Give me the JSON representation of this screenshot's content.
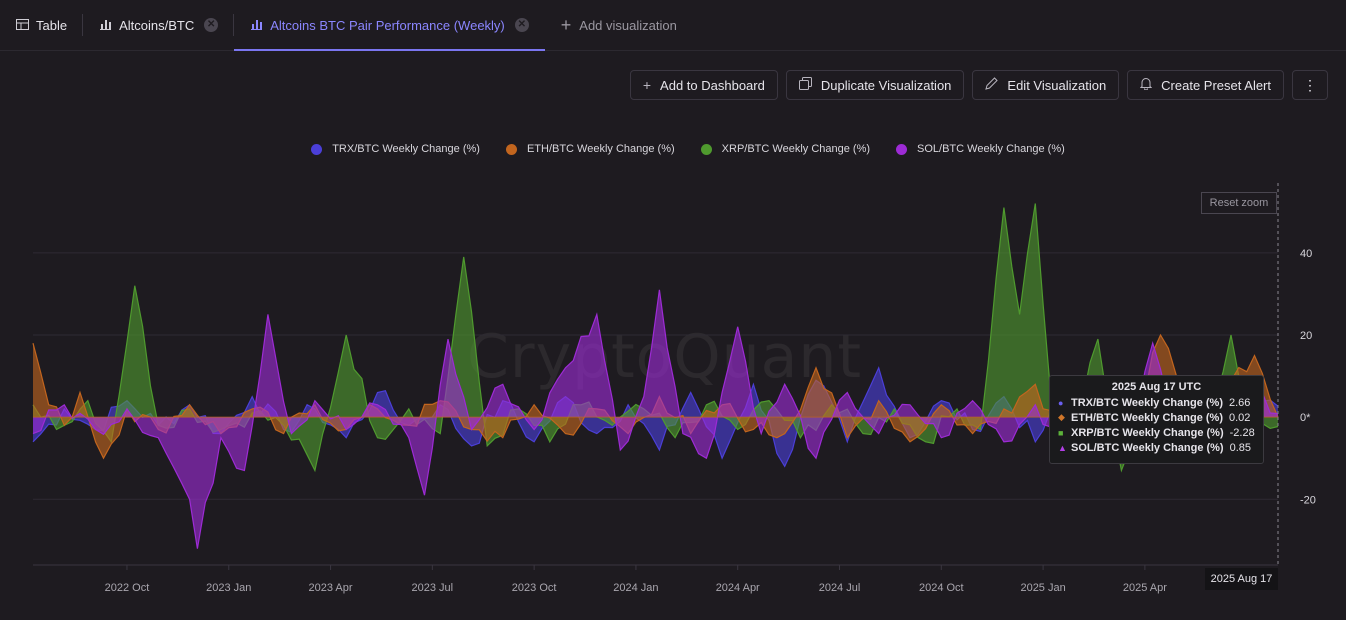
{
  "tabs": [
    {
      "label": "Table",
      "icon": "table-icon",
      "closable": false
    },
    {
      "label": "Altcoins/BTC",
      "icon": "bar-chart-icon",
      "closable": true
    },
    {
      "label": "Altcoins BTC Pair Performance (Weekly)",
      "icon": "bar-chart-icon",
      "closable": true,
      "active": true
    }
  ],
  "add_tab_label": "Add visualization",
  "toolbar": {
    "add_dashboard": "Add to Dashboard",
    "duplicate": "Duplicate Visualization",
    "edit": "Edit Visualization",
    "preset_alert": "Create Preset Alert",
    "more": "⋮"
  },
  "reset_zoom": "Reset zoom",
  "watermark": "CryptoQuant",
  "tooltip": {
    "title": "2025 Aug 17 UTC",
    "rows": [
      {
        "label": "TRX/BTC Weekly Change (%)",
        "value": "2.66",
        "marker": "●"
      },
      {
        "label": "ETH/BTC Weekly Change (%)",
        "value": "0.02",
        "marker": "◆"
      },
      {
        "label": "XRP/BTC Weekly Change (%)",
        "value": "-2.28",
        "marker": "■"
      },
      {
        "label": "SOL/BTC Weekly Change (%)",
        "value": "0.85",
        "marker": "▲"
      }
    ]
  },
  "x_flag": "2025 Aug 17",
  "chart_data": {
    "type": "area",
    "ylim": [
      -36,
      57
    ],
    "y_ticks": [
      {
        "value": 40,
        "label": "40"
      },
      {
        "value": 20,
        "label": "20"
      },
      {
        "value": 0,
        "label": "0*"
      },
      {
        "value": -20,
        "label": "-20"
      }
    ],
    "x_ticks": [
      {
        "label": "2022 Oct",
        "index": 12
      },
      {
        "label": "2023 Jan",
        "index": 25
      },
      {
        "label": "2023 Apr",
        "index": 38
      },
      {
        "label": "2023 Jul",
        "index": 51
      },
      {
        "label": "2023 Oct",
        "index": 64
      },
      {
        "label": "2024 Jan",
        "index": 77
      },
      {
        "label": "2024 Apr",
        "index": 90
      },
      {
        "label": "2024 Jul",
        "index": 103
      },
      {
        "label": "2024 Oct",
        "index": 116
      },
      {
        "label": "2025 Jan",
        "index": 129
      },
      {
        "label": "2025 Apr",
        "index": 142
      }
    ],
    "x_start": "2022 Jul",
    "x_end": "2025 Aug 17",
    "n_points": 160,
    "grid": true,
    "legend_position": "top-center",
    "series": [
      {
        "name": "TRX/BTC Weekly Change (%)",
        "color": "#4b3fd8",
        "keypoints": [
          [
            0,
            -6
          ],
          [
            4,
            2
          ],
          [
            8,
            -3
          ],
          [
            12,
            4
          ],
          [
            16,
            -2
          ],
          [
            20,
            3
          ],
          [
            24,
            -4
          ],
          [
            28,
            5
          ],
          [
            32,
            -3
          ],
          [
            36,
            2
          ],
          [
            40,
            -5
          ],
          [
            44,
            6
          ],
          [
            48,
            -2
          ],
          [
            52,
            3
          ],
          [
            56,
            -7
          ],
          [
            60,
            4
          ],
          [
            64,
            -6
          ],
          [
            68,
            5
          ],
          [
            72,
            -4
          ],
          [
            76,
            3
          ],
          [
            80,
            -8
          ],
          [
            84,
            6
          ],
          [
            88,
            -10
          ],
          [
            92,
            8
          ],
          [
            96,
            -12
          ],
          [
            100,
            9
          ],
          [
            104,
            -6
          ],
          [
            108,
            12
          ],
          [
            112,
            -5
          ],
          [
            116,
            4
          ],
          [
            120,
            -3
          ],
          [
            124,
            5
          ],
          [
            128,
            -6
          ],
          [
            132,
            6
          ],
          [
            136,
            -9
          ],
          [
            140,
            4
          ],
          [
            144,
            -3
          ],
          [
            148,
            3
          ],
          [
            152,
            -4
          ],
          [
            156,
            2
          ],
          [
            159,
            2.66
          ]
        ]
      },
      {
        "name": "ETH/BTC Weekly Change (%)",
        "color": "#c2651e",
        "keypoints": [
          [
            0,
            18
          ],
          [
            2,
            3
          ],
          [
            4,
            -2
          ],
          [
            6,
            6
          ],
          [
            9,
            -10
          ],
          [
            12,
            2
          ],
          [
            16,
            -3
          ],
          [
            20,
            3
          ],
          [
            24,
            -4
          ],
          [
            28,
            2
          ],
          [
            32,
            -4
          ],
          [
            36,
            3
          ],
          [
            40,
            -3
          ],
          [
            44,
            2
          ],
          [
            48,
            -2
          ],
          [
            52,
            4
          ],
          [
            56,
            -3
          ],
          [
            60,
            -5
          ],
          [
            64,
            3
          ],
          [
            68,
            -4
          ],
          [
            72,
            2
          ],
          [
            76,
            -4
          ],
          [
            80,
            5
          ],
          [
            84,
            -4
          ],
          [
            88,
            3
          ],
          [
            92,
            -3
          ],
          [
            96,
            -4
          ],
          [
            100,
            12
          ],
          [
            104,
            -5
          ],
          [
            108,
            4
          ],
          [
            112,
            -6
          ],
          [
            116,
            3
          ],
          [
            120,
            -4
          ],
          [
            124,
            2
          ],
          [
            128,
            8
          ],
          [
            132,
            -6
          ],
          [
            136,
            3
          ],
          [
            140,
            -4
          ],
          [
            144,
            20
          ],
          [
            148,
            -3
          ],
          [
            152,
            8
          ],
          [
            156,
            15
          ],
          [
            159,
            0.02
          ]
        ]
      },
      {
        "name": "XRP/BTC Weekly Change (%)",
        "color": "#4f9a2e",
        "keypoints": [
          [
            0,
            3
          ],
          [
            4,
            -2
          ],
          [
            7,
            4
          ],
          [
            10,
            -6
          ],
          [
            13,
            32
          ],
          [
            16,
            -2
          ],
          [
            20,
            2
          ],
          [
            24,
            -3
          ],
          [
            28,
            1
          ],
          [
            32,
            -2
          ],
          [
            36,
            -13
          ],
          [
            40,
            20
          ],
          [
            44,
            -5
          ],
          [
            48,
            2
          ],
          [
            52,
            -4
          ],
          [
            55,
            39
          ],
          [
            58,
            -7
          ],
          [
            62,
            2
          ],
          [
            66,
            -6
          ],
          [
            70,
            3
          ],
          [
            74,
            -2
          ],
          [
            78,
            2
          ],
          [
            82,
            -5
          ],
          [
            86,
            3
          ],
          [
            90,
            -3
          ],
          [
            94,
            4
          ],
          [
            98,
            -5
          ],
          [
            102,
            3
          ],
          [
            106,
            -4
          ],
          [
            110,
            2
          ],
          [
            114,
            -6
          ],
          [
            118,
            2
          ],
          [
            121,
            -3
          ],
          [
            124,
            51
          ],
          [
            126,
            25
          ],
          [
            128,
            52
          ],
          [
            130,
            5
          ],
          [
            133,
            -3
          ],
          [
            136,
            19
          ],
          [
            139,
            -13
          ],
          [
            142,
            3
          ],
          [
            146,
            -2
          ],
          [
            150,
            -4
          ],
          [
            153,
            20
          ],
          [
            156,
            -3
          ],
          [
            159,
            -2.28
          ]
        ]
      },
      {
        "name": "SOL/BTC Weekly Change (%)",
        "color": "#9d2bd5",
        "keypoints": [
          [
            0,
            -4
          ],
          [
            4,
            3
          ],
          [
            8,
            -3
          ],
          [
            12,
            2
          ],
          [
            16,
            -5
          ],
          [
            20,
            -20
          ],
          [
            21,
            -32
          ],
          [
            24,
            -5
          ],
          [
            27,
            -13
          ],
          [
            30,
            25
          ],
          [
            33,
            -4
          ],
          [
            36,
            4
          ],
          [
            40,
            -3
          ],
          [
            44,
            3
          ],
          [
            48,
            -5
          ],
          [
            50,
            -19
          ],
          [
            53,
            19
          ],
          [
            56,
            -3
          ],
          [
            60,
            8
          ],
          [
            64,
            -3
          ],
          [
            68,
            12
          ],
          [
            72,
            25
          ],
          [
            75,
            -8
          ],
          [
            78,
            5
          ],
          [
            80,
            31
          ],
          [
            83,
            -4
          ],
          [
            86,
            -10
          ],
          [
            90,
            22
          ],
          [
            93,
            -4
          ],
          [
            96,
            8
          ],
          [
            100,
            -10
          ],
          [
            104,
            6
          ],
          [
            108,
            -4
          ],
          [
            112,
            3
          ],
          [
            116,
            -5
          ],
          [
            120,
            4
          ],
          [
            124,
            -6
          ],
          [
            128,
            3
          ],
          [
            132,
            -8
          ],
          [
            136,
            6
          ],
          [
            140,
            -6
          ],
          [
            143,
            18
          ],
          [
            146,
            -3
          ],
          [
            150,
            5
          ],
          [
            154,
            -4
          ],
          [
            157,
            6
          ],
          [
            159,
            0.85
          ]
        ]
      }
    ]
  }
}
